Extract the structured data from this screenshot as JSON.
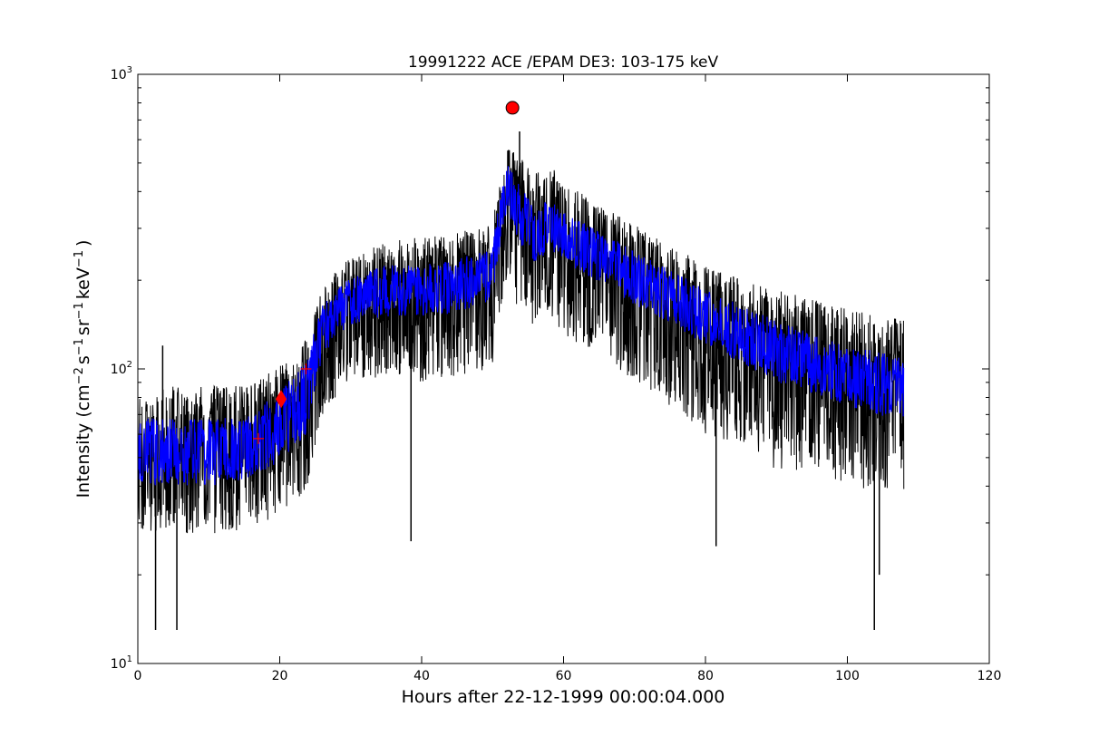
{
  "chart_data": {
    "type": "line",
    "title": "19991222 ACE /EPAM DE3: 103-175 keV",
    "xlabel": "Hours after 22-12-1999 00:00:04.000",
    "ylabel_parts": {
      "base": "Intensity (cm",
      "e1": "−2",
      "s": "s",
      "e2": "−1",
      "sr": "sr",
      "e3": "−1",
      "kev": "keV",
      "e4": "−1",
      "close": ")"
    },
    "xlim": [
      0,
      120
    ],
    "ylim": [
      10,
      1000
    ],
    "yscale": "log",
    "grid": false,
    "x_ticks": [
      {
        "value": 0,
        "label": "0"
      },
      {
        "value": 20,
        "label": "20"
      },
      {
        "value": 40,
        "label": "40"
      },
      {
        "value": 60,
        "label": "60"
      },
      {
        "value": 80,
        "label": "80"
      },
      {
        "value": 100,
        "label": "100"
      },
      {
        "value": 120,
        "label": "120"
      }
    ],
    "y_ticks": [
      {
        "value": 10,
        "base": "10",
        "exp": "1"
      },
      {
        "value": 100,
        "base": "10",
        "exp": "2"
      },
      {
        "value": 1000,
        "base": "10",
        "exp": "3"
      }
    ],
    "series": [
      {
        "role": "raw intensity (noisy envelope)",
        "color": "#000000",
        "envelope": [
          {
            "x": 0,
            "low": 28,
            "mid": 52,
            "high": 85
          },
          {
            "x": 5,
            "low": 28,
            "mid": 52,
            "high": 88
          },
          {
            "x": 10,
            "low": 27,
            "mid": 53,
            "high": 88
          },
          {
            "x": 15,
            "low": 28,
            "mid": 55,
            "high": 90
          },
          {
            "x": 18,
            "low": 30,
            "mid": 60,
            "high": 95
          },
          {
            "x": 22,
            "low": 35,
            "mid": 75,
            "high": 110
          },
          {
            "x": 24,
            "low": 40,
            "mid": 90,
            "high": 130
          },
          {
            "x": 26,
            "low": 70,
            "mid": 140,
            "high": 190
          },
          {
            "x": 30,
            "low": 90,
            "mid": 170,
            "high": 240
          },
          {
            "x": 35,
            "low": 95,
            "mid": 185,
            "high": 270
          },
          {
            "x": 40,
            "low": 90,
            "mid": 185,
            "high": 280
          },
          {
            "x": 45,
            "low": 95,
            "mid": 190,
            "high": 290
          },
          {
            "x": 50,
            "low": 100,
            "mid": 210,
            "high": 310
          },
          {
            "x": 52,
            "low": 200,
            "mid": 420,
            "high": 580
          },
          {
            "x": 54,
            "low": 150,
            "mid": 330,
            "high": 520
          },
          {
            "x": 56,
            "low": 140,
            "mid": 280,
            "high": 460
          },
          {
            "x": 58,
            "low": 150,
            "mid": 310,
            "high": 500
          },
          {
            "x": 60,
            "low": 130,
            "mid": 280,
            "high": 430
          },
          {
            "x": 65,
            "low": 110,
            "mid": 240,
            "high": 360
          },
          {
            "x": 70,
            "low": 90,
            "mid": 205,
            "high": 310
          },
          {
            "x": 75,
            "low": 75,
            "mid": 175,
            "high": 260
          },
          {
            "x": 80,
            "low": 60,
            "mid": 150,
            "high": 230
          },
          {
            "x": 85,
            "low": 55,
            "mid": 130,
            "high": 200
          },
          {
            "x": 90,
            "low": 45,
            "mid": 115,
            "high": 185
          },
          {
            "x": 95,
            "low": 45,
            "mid": 105,
            "high": 175
          },
          {
            "x": 100,
            "low": 40,
            "mid": 95,
            "high": 160
          },
          {
            "x": 105,
            "low": 38,
            "mid": 85,
            "high": 150
          },
          {
            "x": 108,
            "low": 38,
            "mid": 85,
            "high": 150
          }
        ],
        "spikes": [
          {
            "x": 3.5,
            "y": 120
          },
          {
            "x": 2.5,
            "y": 13
          },
          {
            "x": 5.5,
            "y": 13
          },
          {
            "x": 38.5,
            "y": 26
          },
          {
            "x": 53.8,
            "y": 640
          },
          {
            "x": 81.5,
            "y": 25
          },
          {
            "x": 103.8,
            "y": 13
          },
          {
            "x": 104.5,
            "y": 20
          }
        ]
      },
      {
        "role": "smoothed intensity",
        "color": "#0000ff",
        "envelope": [
          {
            "x": 0,
            "low": 40,
            "mid": 52,
            "high": 68
          },
          {
            "x": 10,
            "low": 40,
            "mid": 53,
            "high": 68
          },
          {
            "x": 15,
            "low": 42,
            "mid": 55,
            "high": 70
          },
          {
            "x": 20,
            "low": 48,
            "mid": 65,
            "high": 82
          },
          {
            "x": 24,
            "low": 60,
            "mid": 90,
            "high": 110
          },
          {
            "x": 26,
            "low": 110,
            "mid": 140,
            "high": 165
          },
          {
            "x": 30,
            "low": 140,
            "mid": 170,
            "high": 205
          },
          {
            "x": 35,
            "low": 150,
            "mid": 185,
            "high": 225
          },
          {
            "x": 40,
            "low": 150,
            "mid": 185,
            "high": 225
          },
          {
            "x": 45,
            "low": 155,
            "mid": 190,
            "high": 235
          },
          {
            "x": 50,
            "low": 170,
            "mid": 210,
            "high": 260
          },
          {
            "x": 52,
            "low": 340,
            "mid": 420,
            "high": 500
          },
          {
            "x": 54,
            "low": 260,
            "mid": 330,
            "high": 420
          },
          {
            "x": 56,
            "low": 230,
            "mid": 280,
            "high": 350
          },
          {
            "x": 58,
            "low": 250,
            "mid": 310,
            "high": 380
          },
          {
            "x": 60,
            "low": 230,
            "mid": 280,
            "high": 340
          },
          {
            "x": 70,
            "low": 165,
            "mid": 205,
            "high": 250
          },
          {
            "x": 80,
            "low": 120,
            "mid": 150,
            "high": 185
          },
          {
            "x": 90,
            "low": 90,
            "mid": 115,
            "high": 145
          },
          {
            "x": 100,
            "low": 75,
            "mid": 95,
            "high": 120
          },
          {
            "x": 108,
            "low": 65,
            "mid": 85,
            "high": 110
          }
        ]
      }
    ],
    "markers": [
      {
        "name": "peak-marker",
        "shape": "circle",
        "x": 52.8,
        "y": 770,
        "color": "#ff0000"
      },
      {
        "name": "onset-marker",
        "shape": "diamond",
        "x": 20.2,
        "y": 79,
        "color": "#ff0000"
      },
      {
        "name": "plus-marker",
        "shape": "plus",
        "x": 17.0,
        "y": 58,
        "color": "#ff0000"
      },
      {
        "name": "plus-marker",
        "shape": "plus",
        "x": 23.7,
        "y": 100,
        "color": "#ff0000"
      }
    ]
  }
}
